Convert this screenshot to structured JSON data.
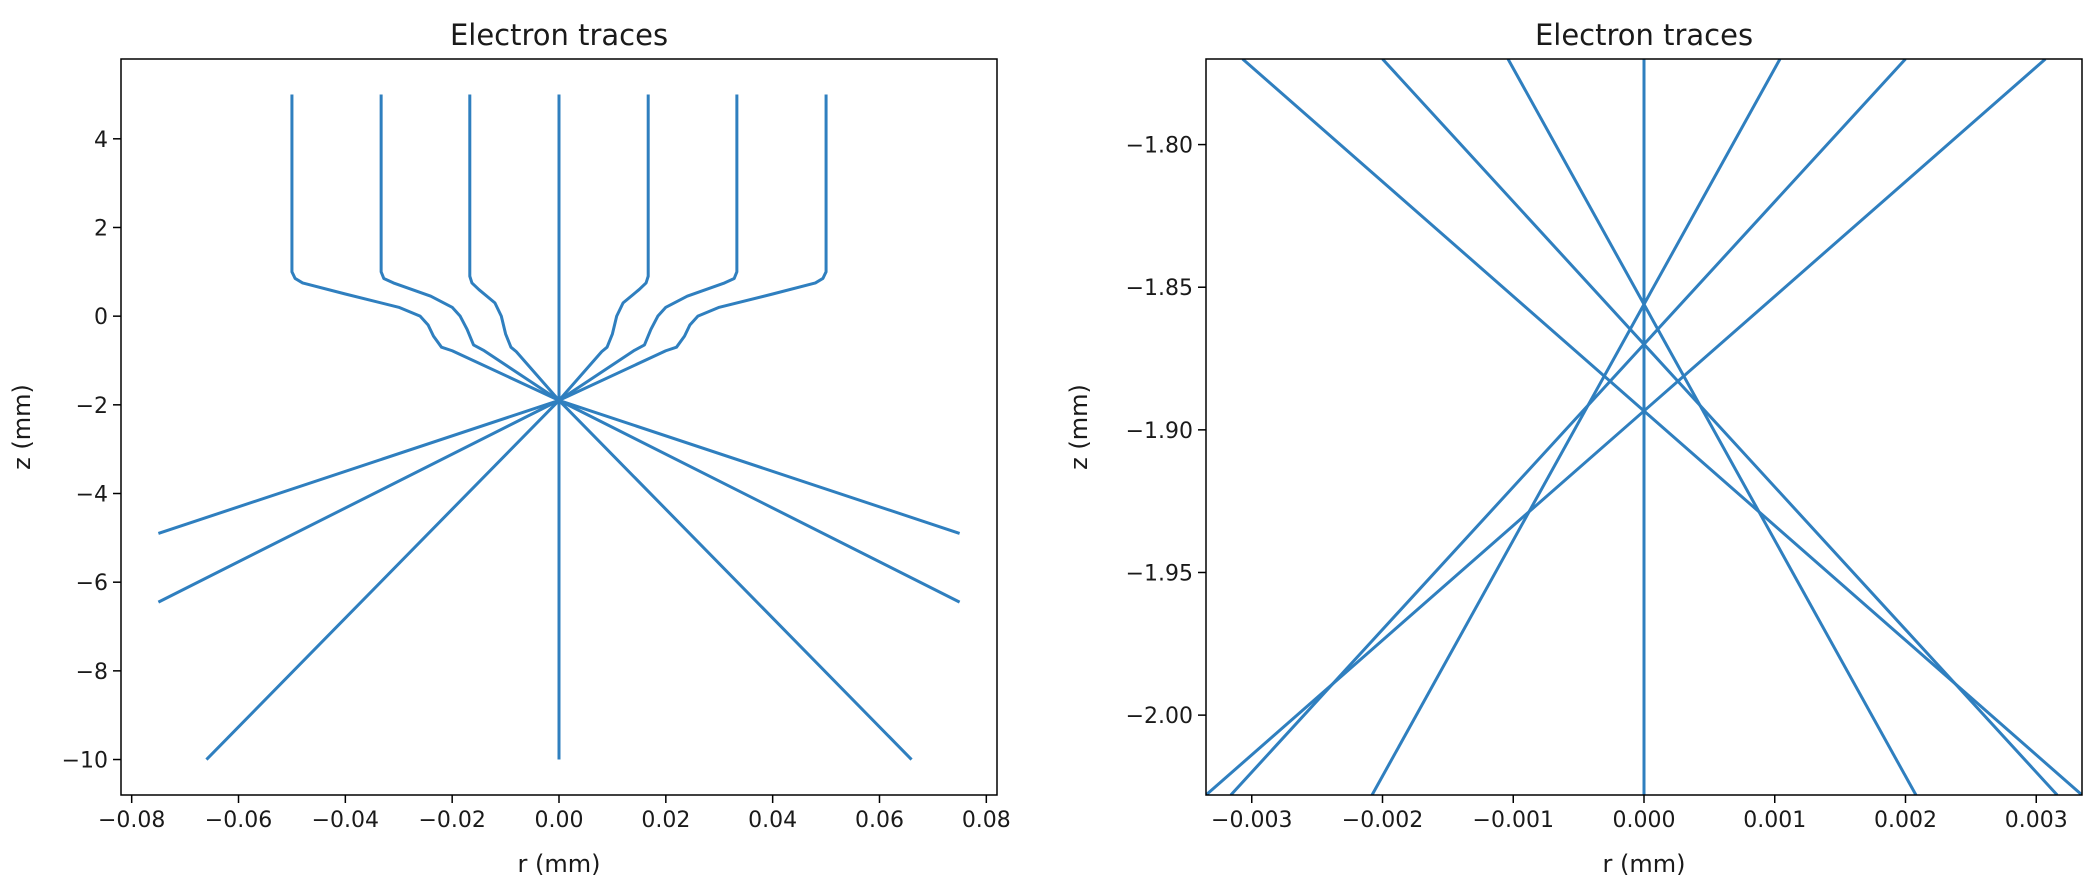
{
  "chart_data": [
    {
      "type": "line",
      "title": "Electron traces",
      "xlabel": "r (mm)",
      "ylabel": "z (mm)",
      "xlim": [
        -0.082,
        0.082
      ],
      "ylim": [
        -10.8,
        5.8
      ],
      "xticks": [
        -0.08,
        -0.06,
        -0.04,
        -0.02,
        0.0,
        0.02,
        0.04,
        0.06,
        0.08
      ],
      "xtick_labels": [
        "−0.08",
        "−0.06",
        "−0.04",
        "−0.02",
        "0.00",
        "0.02",
        "0.04",
        "0.06",
        "0.08"
      ],
      "yticks": [
        4,
        2,
        0,
        -2,
        -4,
        -6,
        -8,
        -10
      ],
      "ytick_labels": [
        "4",
        "2",
        "0",
        "−2",
        "−4",
        "−6",
        "−8",
        "−10"
      ],
      "grid": false,
      "color": "#2f7fbf",
      "series": [
        {
          "x": [
            -0.05,
            -0.05,
            -0.0494,
            -0.048,
            -0.04,
            -0.03,
            -0.026,
            -0.0245,
            -0.0235,
            -0.022,
            -0.02,
            0.0,
            0.075
          ],
          "y": [
            5.0,
            1.0,
            0.85,
            0.75,
            0.5,
            0.2,
            0.0,
            -0.2,
            -0.45,
            -0.7,
            -0.78,
            -1.9,
            -4.9
          ]
        },
        {
          "x": [
            -0.0333,
            -0.0333,
            -0.0328,
            -0.031,
            -0.024,
            -0.02,
            -0.0185,
            -0.0172,
            -0.016,
            -0.014,
            0.0,
            0.075
          ],
          "y": [
            5.0,
            1.0,
            0.85,
            0.75,
            0.45,
            0.2,
            0.0,
            -0.3,
            -0.65,
            -0.78,
            -1.9,
            -6.45
          ]
        },
        {
          "x": [
            -0.0167,
            -0.0167,
            -0.0163,
            -0.015,
            -0.012,
            -0.0108,
            -0.01,
            -0.009,
            -0.008,
            0.0,
            0.066
          ],
          "y": [
            5.0,
            0.9,
            0.75,
            0.6,
            0.3,
            0.0,
            -0.4,
            -0.7,
            -0.8,
            -1.9,
            -10.0
          ]
        },
        {
          "x": [
            0.0,
            0.0
          ],
          "y": [
            5.0,
            -10.0
          ]
        },
        {
          "x": [
            0.0167,
            0.0167,
            0.0163,
            0.015,
            0.012,
            0.0108,
            0.01,
            0.009,
            0.008,
            0.0,
            -0.066
          ],
          "y": [
            5.0,
            0.9,
            0.75,
            0.6,
            0.3,
            0.0,
            -0.4,
            -0.7,
            -0.8,
            -1.9,
            -10.0
          ]
        },
        {
          "x": [
            0.0333,
            0.0333,
            0.0328,
            0.031,
            0.024,
            0.02,
            0.0185,
            0.0172,
            0.016,
            0.014,
            0.0,
            -0.075
          ],
          "y": [
            5.0,
            1.0,
            0.85,
            0.75,
            0.45,
            0.2,
            0.0,
            -0.3,
            -0.65,
            -0.78,
            -1.9,
            -6.45
          ]
        },
        {
          "x": [
            0.05,
            0.05,
            0.0494,
            0.048,
            0.04,
            0.03,
            0.026,
            0.0245,
            0.0235,
            0.022,
            0.02,
            0.0,
            -0.075
          ],
          "y": [
            5.0,
            1.0,
            0.85,
            0.75,
            0.5,
            0.2,
            0.0,
            -0.2,
            -0.45,
            -0.7,
            -0.78,
            -1.9,
            -4.9
          ]
        }
      ]
    },
    {
      "type": "line",
      "title": "Electron traces",
      "xlabel": "r (mm)",
      "ylabel": "z (mm)",
      "xlim": [
        -0.00335,
        0.00335
      ],
      "ylim": [
        -2.028,
        -1.77
      ],
      "xticks": [
        -0.003,
        -0.002,
        -0.001,
        0.0,
        0.001,
        0.002,
        0.003
      ],
      "xtick_labels": [
        "−0.003",
        "−0.002",
        "−0.001",
        "0.000",
        "0.001",
        "0.002",
        "0.003"
      ],
      "yticks": [
        -1.8,
        -1.85,
        -1.9,
        -1.95,
        -2.0
      ],
      "ytick_labels": [
        "−1.80",
        "−1.85",
        "−1.90",
        "−1.95",
        "−2.00"
      ],
      "grid": false,
      "color": "#2f7fbf",
      "series": [
        {
          "x": [
            -0.00307,
            0.00335
          ],
          "y": [
            -1.77,
            -2.028
          ]
        },
        {
          "x": [
            -0.002,
            0.00316
          ],
          "y": [
            -1.77,
            -2.028
          ]
        },
        {
          "x": [
            -0.00104,
            0.00208
          ],
          "y": [
            -1.77,
            -2.028
          ]
        },
        {
          "x": [
            0.0,
            0.0
          ],
          "y": [
            -1.77,
            -2.028
          ]
        },
        {
          "x": [
            0.00104,
            -0.00208
          ],
          "y": [
            -1.77,
            -2.028
          ]
        },
        {
          "x": [
            0.002,
            -0.00316
          ],
          "y": [
            -1.77,
            -2.028
          ]
        },
        {
          "x": [
            0.00307,
            -0.00335
          ],
          "y": [
            -1.77,
            -2.028
          ]
        }
      ]
    }
  ]
}
